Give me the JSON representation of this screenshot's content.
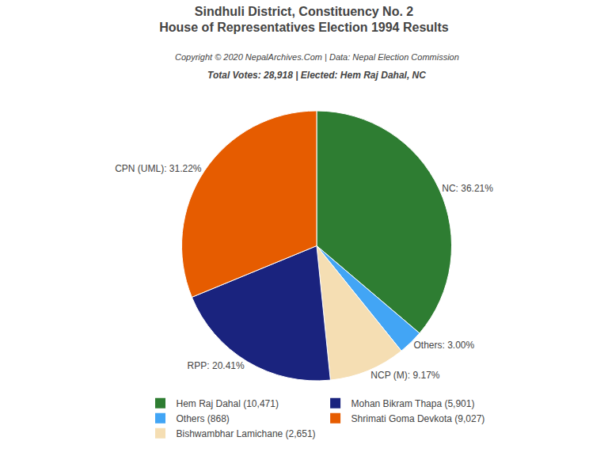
{
  "chart_data": {
    "type": "pie",
    "title": "Sindhuli District, Constituency No. 2\nHouse of Representatives Election 1994 Results",
    "subtitle": "Copyright © 2020 NepalArchives.Com | Data: Nepal Election Commission",
    "annotations": [
      "Total Votes: 28,918 | Elected: Hem Raj Dahal, NC"
    ],
    "categories": [
      "NC",
      "Others",
      "NCP (M)",
      "RPP",
      "CPN (UML)"
    ],
    "values": [
      36.21,
      3.0,
      9.17,
      20.41,
      31.22
    ],
    "value_labels": [
      "NC: 36.21%",
      "Others: 3.00%",
      "NCP (M): 9.17%",
      "RPP: 20.41%",
      "CPN (UML): 31.22%"
    ],
    "colors": [
      "#2e7d32",
      "#42a5f5",
      "#f5deb3",
      "#1a237e",
      "#e65c00"
    ],
    "data_labels": true,
    "legend": "bottom",
    "series": [
      {
        "name": "Hem Raj Dahal (10,471)",
        "color": "#2e7d32"
      },
      {
        "name": "Mohan Bikram Thapa (5,901)",
        "color": "#1a237e"
      },
      {
        "name": "Others (868)",
        "color": "#42a5f5"
      },
      {
        "name": "Shrimati Goma Devkota (9,027)",
        "color": "#e65c00"
      },
      {
        "name": "Bishwambhar Lamichane (2,651)",
        "color": "#f5deb3"
      }
    ]
  }
}
